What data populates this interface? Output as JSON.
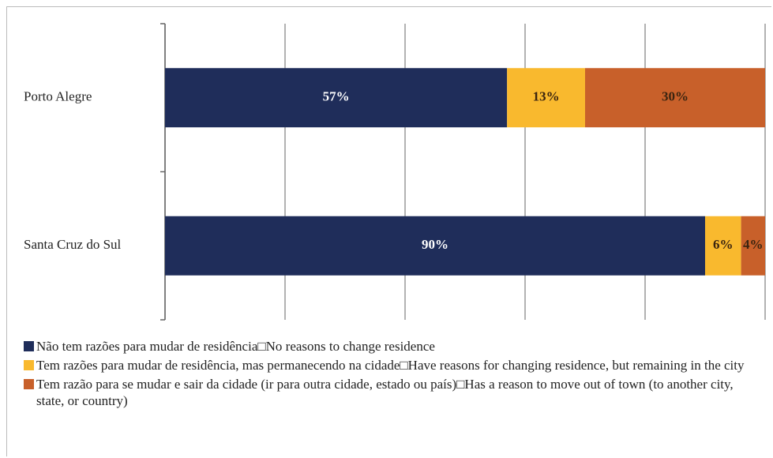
{
  "chart_data": {
    "type": "stacked_barh",
    "categories": [
      "Porto Alegre",
      "Santa Cruz do Sul"
    ],
    "series": [
      {
        "name": "Não tem razões para mudar de residência□No reasons to change residence",
        "color": "#1f2d5a",
        "values": [
          57,
          90
        ],
        "value_labels": [
          "57%",
          "90%"
        ]
      },
      {
        "name": "Tem razões para mudar de residência, mas permanecendo na cidade□Have reasons for changing residence, but remaining in the city",
        "color": "#f9b92e",
        "values": [
          13,
          6
        ],
        "value_labels": [
          "13%",
          "6%"
        ]
      },
      {
        "name": "Tem razão para se mudar e sair da cidade (ir para outra cidade, estado ou país)□Has a reason to move out of town (to another city, state, or country)",
        "color": "#c8602a",
        "values": [
          30,
          4
        ],
        "value_labels": [
          "30%",
          "4%"
        ]
      }
    ],
    "xlim": [
      0,
      100
    ],
    "xticks": [
      0,
      20,
      40,
      60,
      80,
      100
    ],
    "grid": true
  }
}
